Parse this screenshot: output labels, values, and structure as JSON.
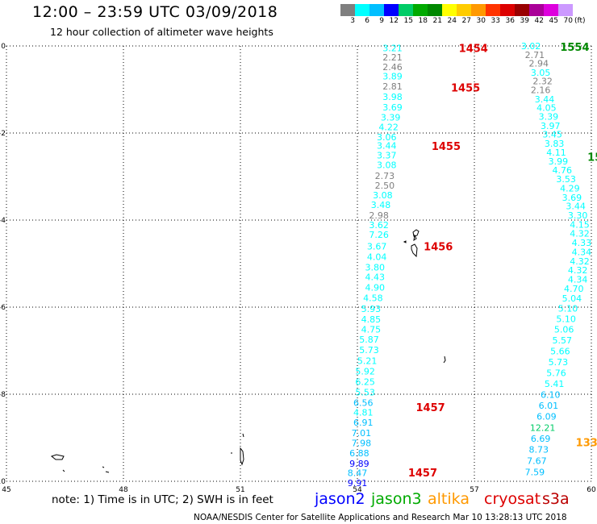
{
  "title": "12:00 – 23:59 UTC 03/09/2018",
  "subtitle": "12 hour collection of altimeter wave heights",
  "color_scale": {
    "unit_label": "(ft)",
    "ticks": [
      "3",
      "6",
      "9",
      "12",
      "15",
      "18",
      "21",
      "24",
      "27",
      "30",
      "33",
      "36",
      "39",
      "42",
      "45",
      "70"
    ],
    "colors": [
      "#7f7f7f",
      "#00ffff",
      "#00bfff",
      "#0000ff",
      "#00cc66",
      "#00aa00",
      "#008800",
      "#ffff00",
      "#ffcc00",
      "#ff9900",
      "#ff3300",
      "#dd0000",
      "#990000",
      "#aa0099",
      "#dd00dd",
      "#cc99ff",
      "#ffffff"
    ]
  },
  "note": "note:  1)  Time is in UTC;  2)  SWH is in feet",
  "satellites": [
    {
      "name": "jason2",
      "color": "#0000ff"
    },
    {
      "name": "jason3",
      "color": "#00aa00"
    },
    {
      "name": "altika",
      "color": "#ff9900"
    },
    {
      "name": "cryosat",
      "color": "#dd0000"
    },
    {
      "name": "s3a",
      "color": "#bb0000"
    }
  ],
  "footer": "NOAA/NESDIS Center for Satellite Applications and Research    Mar 10 13:28:13 UTC 2018",
  "chart_data": {
    "type": "scatter",
    "x_ticks": [
      "45",
      "48",
      "51",
      "54",
      "57",
      "60"
    ],
    "y_ticks": [
      "0",
      "-2",
      "-4",
      "-6",
      "-8",
      "-10"
    ],
    "xlim": [
      45,
      60
    ],
    "ylim": [
      -10,
      0
    ],
    "grid": true,
    "time_labels": [
      {
        "text": "1454",
        "x": 56.6,
        "y": -0.05,
        "color": "#dd0000"
      },
      {
        "text": "1455",
        "x": 56.4,
        "y": -0.95,
        "color": "#dd0000"
      },
      {
        "text": "1455",
        "x": 55.9,
        "y": -2.3,
        "color": "#dd0000"
      },
      {
        "text": "1456",
        "x": 55.7,
        "y": -4.6,
        "color": "#dd0000"
      },
      {
        "text": "1457",
        "x": 55.5,
        "y": -8.3,
        "color": "#dd0000"
      },
      {
        "text": "1457",
        "x": 55.3,
        "y": -9.8,
        "color": "#dd0000"
      },
      {
        "text": "1554",
        "x": 59.2,
        "y": -0.02,
        "color": "#008800"
      },
      {
        "text": "15",
        "x": 59.9,
        "y": -2.55,
        "color": "#008800"
      },
      {
        "text": "1339",
        "x": 59.6,
        "y": -9.1,
        "color": "#ff9900"
      }
    ],
    "tracks": [
      {
        "name": "track-1",
        "points": [
          {
            "x": 54.9,
            "y": -0.05,
            "v": "3.21",
            "c": "#00ffff"
          },
          {
            "x": 54.9,
            "y": -0.26,
            "v": "2.21",
            "c": "#7f7f7f"
          },
          {
            "x": 54.9,
            "y": -0.48,
            "v": "2.46",
            "c": "#7f7f7f"
          },
          {
            "x": 54.9,
            "y": -0.69,
            "v": "3.89",
            "c": "#00ffff"
          },
          {
            "x": 54.9,
            "y": -0.93,
            "v": "2.81",
            "c": "#7f7f7f"
          },
          {
            "x": 54.9,
            "y": -1.17,
            "v": "3.98",
            "c": "#00ffff"
          },
          {
            "x": 54.9,
            "y": -1.41,
            "v": "3.69",
            "c": "#00ffff"
          },
          {
            "x": 54.85,
            "y": -1.64,
            "v": "3.39",
            "c": "#00ffff"
          },
          {
            "x": 54.8,
            "y": -1.86,
            "v": "4.22",
            "c": "#00ffff"
          },
          {
            "x": 54.75,
            "y": -2.09,
            "v": "3.06",
            "c": "#00ffff"
          },
          {
            "x": 54.75,
            "y": -2.29,
            "v": "3.44",
            "c": "#00ffff"
          },
          {
            "x": 54.75,
            "y": -2.51,
            "v": "3.37",
            "c": "#00ffff"
          },
          {
            "x": 54.75,
            "y": -2.73,
            "v": "3.08",
            "c": "#00ffff"
          },
          {
            "x": 54.7,
            "y": -2.98,
            "v": "2.73",
            "c": "#7f7f7f"
          },
          {
            "x": 54.7,
            "y": -3.2,
            "v": "2.50",
            "c": "#7f7f7f"
          },
          {
            "x": 54.65,
            "y": -3.43,
            "v": "3.08",
            "c": "#00ffff"
          },
          {
            "x": 54.6,
            "y": -3.65,
            "v": "3.48",
            "c": "#00ffff"
          },
          {
            "x": 54.55,
            "y": -3.89,
            "v": "2.98",
            "c": "#7f7f7f"
          },
          {
            "x": 54.55,
            "y": -4.11,
            "v": "3.62",
            "c": "#00ffff"
          },
          {
            "x": 54.55,
            "y": -4.33,
            "v": "7.26",
            "c": "#00ffff"
          },
          {
            "x": 54.5,
            "y": -4.6,
            "v": "3.67",
            "c": "#00ffff"
          },
          {
            "x": 54.5,
            "y": -4.84,
            "v": "4.04",
            "c": "#00ffff"
          },
          {
            "x": 54.45,
            "y": -5.08,
            "v": "3.80",
            "c": "#00ffff"
          },
          {
            "x": 54.45,
            "y": -5.31,
            "v": "4.43",
            "c": "#00ffff"
          },
          {
            "x": 54.45,
            "y": -5.55,
            "v": "4.90",
            "c": "#00ffff"
          },
          {
            "x": 54.4,
            "y": -5.79,
            "v": "4.58",
            "c": "#00ffff"
          },
          {
            "x": 54.35,
            "y": -6.04,
            "v": "5.93",
            "c": "#00ffff"
          },
          {
            "x": 54.35,
            "y": -6.28,
            "v": "4.85",
            "c": "#00ffff"
          },
          {
            "x": 54.35,
            "y": -6.51,
            "v": "4.75",
            "c": "#00ffff"
          },
          {
            "x": 54.3,
            "y": -6.74,
            "v": "5.87",
            "c": "#00ffff"
          },
          {
            "x": 54.3,
            "y": -6.98,
            "v": "5.73",
            "c": "#00ffff"
          },
          {
            "x": 54.25,
            "y": -7.23,
            "v": "5.21",
            "c": "#00ffff"
          },
          {
            "x": 54.2,
            "y": -7.47,
            "v": "5.92",
            "c": "#00ffff"
          },
          {
            "x": 54.2,
            "y": -7.71,
            "v": "6.25",
            "c": "#00ffff"
          },
          {
            "x": 54.2,
            "y": -7.95,
            "v": "5.53",
            "c": "#00ffff"
          },
          {
            "x": 54.15,
            "y": -8.19,
            "v": "6.56",
            "c": "#00bfff"
          },
          {
            "x": 54.15,
            "y": -8.42,
            "v": "4.81",
            "c": "#00ffff"
          },
          {
            "x": 54.15,
            "y": -8.65,
            "v": "6.91",
            "c": "#00bfff"
          },
          {
            "x": 54.1,
            "y": -8.89,
            "v": "7.01",
            "c": "#00bfff"
          },
          {
            "x": 54.1,
            "y": -9.12,
            "v": "7.98",
            "c": "#00bfff"
          },
          {
            "x": 54.05,
            "y": -9.35,
            "v": "6.88",
            "c": "#00bfff"
          },
          {
            "x": 54.05,
            "y": -9.59,
            "v": "9.89",
            "c": "#0000ff"
          },
          {
            "x": 54.0,
            "y": -9.81,
            "v": "8.47",
            "c": "#00bfff"
          },
          {
            "x": 54.0,
            "y": -10.04,
            "v": "9.91",
            "c": "#0000ff"
          }
        ]
      },
      {
        "name": "track-2",
        "points": [
          {
            "x": 58.45,
            "y": -0.0,
            "v": "3.02",
            "c": "#00ffff"
          },
          {
            "x": 58.55,
            "y": -0.2,
            "v": "2.71",
            "c": "#7f7f7f"
          },
          {
            "x": 58.65,
            "y": -0.4,
            "v": "2.94",
            "c": "#7f7f7f"
          },
          {
            "x": 58.7,
            "y": -0.61,
            "v": "3.05",
            "c": "#00ffff"
          },
          {
            "x": 58.75,
            "y": -0.81,
            "v": "2.32",
            "c": "#7f7f7f"
          },
          {
            "x": 58.7,
            "y": -1.01,
            "v": "2.16",
            "c": "#7f7f7f"
          },
          {
            "x": 58.8,
            "y": -1.22,
            "v": "3.44",
            "c": "#00ffff"
          },
          {
            "x": 58.85,
            "y": -1.42,
            "v": "4.05",
            "c": "#00ffff"
          },
          {
            "x": 58.9,
            "y": -1.62,
            "v": "3.39",
            "c": "#00ffff"
          },
          {
            "x": 58.95,
            "y": -1.83,
            "v": "3.97",
            "c": "#00ffff"
          },
          {
            "x": 59.0,
            "y": -2.03,
            "v": "3.45",
            "c": "#00ffff"
          },
          {
            "x": 59.05,
            "y": -2.24,
            "v": "3.83",
            "c": "#00ffff"
          },
          {
            "x": 59.1,
            "y": -2.44,
            "v": "4.11",
            "c": "#00ffff"
          },
          {
            "x": 59.15,
            "y": -2.65,
            "v": "3.99",
            "c": "#00ffff"
          },
          {
            "x": 59.25,
            "y": -2.85,
            "v": "4.76",
            "c": "#00ffff"
          },
          {
            "x": 59.35,
            "y": -3.06,
            "v": "3.53",
            "c": "#00ffff"
          },
          {
            "x": 59.45,
            "y": -3.27,
            "v": "4.29",
            "c": "#00ffff"
          },
          {
            "x": 59.5,
            "y": -3.48,
            "v": "3.69",
            "c": "#00ffff"
          },
          {
            "x": 59.6,
            "y": -3.68,
            "v": "3.44",
            "c": "#00ffff"
          },
          {
            "x": 59.65,
            "y": -3.89,
            "v": "3.30",
            "c": "#00ffff"
          },
          {
            "x": 59.7,
            "y": -4.1,
            "v": "4.15",
            "c": "#00ffff"
          },
          {
            "x": 59.7,
            "y": -4.31,
            "v": "4.32",
            "c": "#00ffff"
          },
          {
            "x": 59.75,
            "y": -4.52,
            "v": "4.33",
            "c": "#00ffff"
          },
          {
            "x": 59.75,
            "y": -4.73,
            "v": "4.34",
            "c": "#00ffff"
          },
          {
            "x": 59.7,
            "y": -4.94,
            "v": "4.32",
            "c": "#00ffff"
          },
          {
            "x": 59.65,
            "y": -5.15,
            "v": "4.32",
            "c": "#00ffff"
          },
          {
            "x": 59.65,
            "y": -5.36,
            "v": "4.34",
            "c": "#00ffff"
          },
          {
            "x": 59.55,
            "y": -5.57,
            "v": "4.70",
            "c": "#00ffff"
          },
          {
            "x": 59.5,
            "y": -5.8,
            "v": "5.04",
            "c": "#00ffff"
          },
          {
            "x": 59.4,
            "y": -6.03,
            "v": "5.10",
            "c": "#00ffff"
          },
          {
            "x": 59.35,
            "y": -6.27,
            "v": "5.10",
            "c": "#00ffff"
          },
          {
            "x": 59.3,
            "y": -6.51,
            "v": "5.06",
            "c": "#00ffff"
          },
          {
            "x": 59.25,
            "y": -6.76,
            "v": "5.57",
            "c": "#00ffff"
          },
          {
            "x": 59.2,
            "y": -7.01,
            "v": "5.66",
            "c": "#00ffff"
          },
          {
            "x": 59.15,
            "y": -7.26,
            "v": "5.73",
            "c": "#00ffff"
          },
          {
            "x": 59.1,
            "y": -7.51,
            "v": "5.76",
            "c": "#00ffff"
          },
          {
            "x": 59.05,
            "y": -7.76,
            "v": "5.41",
            "c": "#00ffff"
          },
          {
            "x": 58.95,
            "y": -8.01,
            "v": "6.10",
            "c": "#00bfff"
          },
          {
            "x": 58.9,
            "y": -8.26,
            "v": "6.01",
            "c": "#00bfff"
          },
          {
            "x": 58.85,
            "y": -8.51,
            "v": "6.09",
            "c": "#00bfff"
          },
          {
            "x": 58.75,
            "y": -8.77,
            "v": "12.21",
            "c": "#00cc66"
          },
          {
            "x": 58.7,
            "y": -9.02,
            "v": "6.69",
            "c": "#00bfff"
          },
          {
            "x": 58.65,
            "y": -9.27,
            "v": "8.73",
            "c": "#00bfff"
          },
          {
            "x": 58.6,
            "y": -9.53,
            "v": "7.67",
            "c": "#00bfff"
          },
          {
            "x": 58.55,
            "y": -9.79,
            "v": "7.59",
            "c": "#00bfff"
          }
        ]
      }
    ]
  }
}
